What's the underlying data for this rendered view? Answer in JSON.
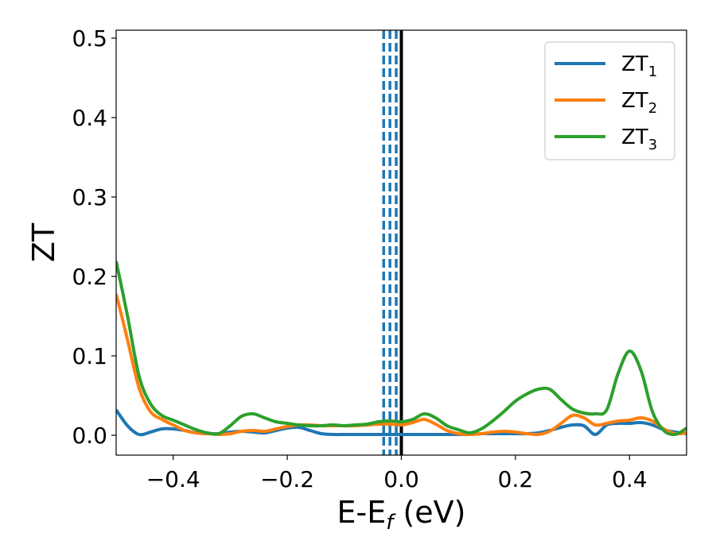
{
  "chart_data": {
    "type": "line",
    "xlabel": "E-E",
    "xlabel_sub": "f",
    "xlabel_unit": " (eV)",
    "ylabel": "ZT",
    "xlim": [
      -0.5,
      0.5
    ],
    "ylim": [
      -0.025,
      0.51
    ],
    "xticks": [
      -0.4,
      -0.2,
      0.0,
      0.2,
      0.4
    ],
    "xtick_labels": [
      "−0.4",
      "−0.2",
      "0.0",
      "0.2",
      "0.4"
    ],
    "yticks": [
      0.0,
      0.1,
      0.2,
      0.3,
      0.4,
      0.5
    ],
    "ytick_labels": [
      "0.0",
      "0.1",
      "0.2",
      "0.3",
      "0.4",
      "0.5"
    ],
    "grid": false,
    "legend_position": "top-right",
    "vlines": [
      {
        "x": -0.031,
        "color": "#1f77b4",
        "style": "dashed"
      },
      {
        "x": -0.02,
        "color": "#1f77b4",
        "style": "dashed"
      },
      {
        "x": -0.009,
        "color": "#1f77b4",
        "style": "dashed"
      },
      {
        "x": 0.0,
        "color": "#000000",
        "style": "solid"
      }
    ],
    "x": [
      -0.5,
      -0.48,
      -0.46,
      -0.44,
      -0.42,
      -0.4,
      -0.38,
      -0.36,
      -0.34,
      -0.32,
      -0.3,
      -0.28,
      -0.26,
      -0.24,
      -0.22,
      -0.2,
      -0.18,
      -0.16,
      -0.14,
      -0.12,
      -0.1,
      -0.08,
      -0.06,
      -0.04,
      -0.02,
      0.0,
      0.02,
      0.04,
      0.06,
      0.08,
      0.1,
      0.12,
      0.14,
      0.16,
      0.18,
      0.2,
      0.22,
      0.24,
      0.26,
      0.28,
      0.3,
      0.32,
      0.34,
      0.36,
      0.38,
      0.4,
      0.42,
      0.44,
      0.46,
      0.48,
      0.5
    ],
    "series": [
      {
        "name": "ZT",
        "name_sub": "1",
        "color": "#1f77b4",
        "values": [
          0.032,
          0.012,
          0.001,
          0.004,
          0.008,
          0.008,
          0.006,
          0.003,
          0.002,
          0.002,
          0.004,
          0.005,
          0.004,
          0.003,
          0.006,
          0.009,
          0.01,
          0.006,
          0.002,
          0.001,
          0.001,
          0.001,
          0.001,
          0.001,
          0.001,
          0.001,
          0.001,
          0.001,
          0.001,
          0.001,
          0.001,
          0.001,
          0.002,
          0.002,
          0.002,
          0.002,
          0.002,
          0.003,
          0.006,
          0.01,
          0.013,
          0.012,
          0.001,
          0.013,
          0.015,
          0.015,
          0.016,
          0.013,
          0.007,
          0.004,
          0.002
        ]
      },
      {
        "name": "ZT",
        "name_sub": "2",
        "color": "#ff7f0e",
        "values": [
          0.178,
          0.12,
          0.06,
          0.03,
          0.02,
          0.013,
          0.006,
          0.003,
          0.002,
          0.001,
          0.002,
          0.005,
          0.006,
          0.005,
          0.008,
          0.011,
          0.013,
          0.013,
          0.012,
          0.012,
          0.012,
          0.012,
          0.013,
          0.014,
          0.014,
          0.013,
          0.016,
          0.02,
          0.014,
          0.006,
          0.002,
          0.001,
          0.002,
          0.004,
          0.005,
          0.004,
          0.002,
          0.001,
          0.005,
          0.015,
          0.025,
          0.022,
          0.013,
          0.015,
          0.018,
          0.019,
          0.022,
          0.018,
          0.008,
          0.002,
          0.003
        ]
      },
      {
        "name": "ZT",
        "name_sub": "3",
        "color": "#2ca02c",
        "values": [
          0.219,
          0.15,
          0.075,
          0.04,
          0.025,
          0.019,
          0.013,
          0.007,
          0.003,
          0.002,
          0.012,
          0.024,
          0.027,
          0.022,
          0.017,
          0.015,
          0.013,
          0.012,
          0.012,
          0.013,
          0.012,
          0.013,
          0.014,
          0.017,
          0.018,
          0.017,
          0.02,
          0.027,
          0.022,
          0.012,
          0.007,
          0.003,
          0.008,
          0.018,
          0.03,
          0.043,
          0.052,
          0.058,
          0.058,
          0.045,
          0.033,
          0.028,
          0.027,
          0.032,
          0.078,
          0.106,
          0.082,
          0.03,
          0.006,
          0.001,
          0.009
        ]
      }
    ]
  }
}
